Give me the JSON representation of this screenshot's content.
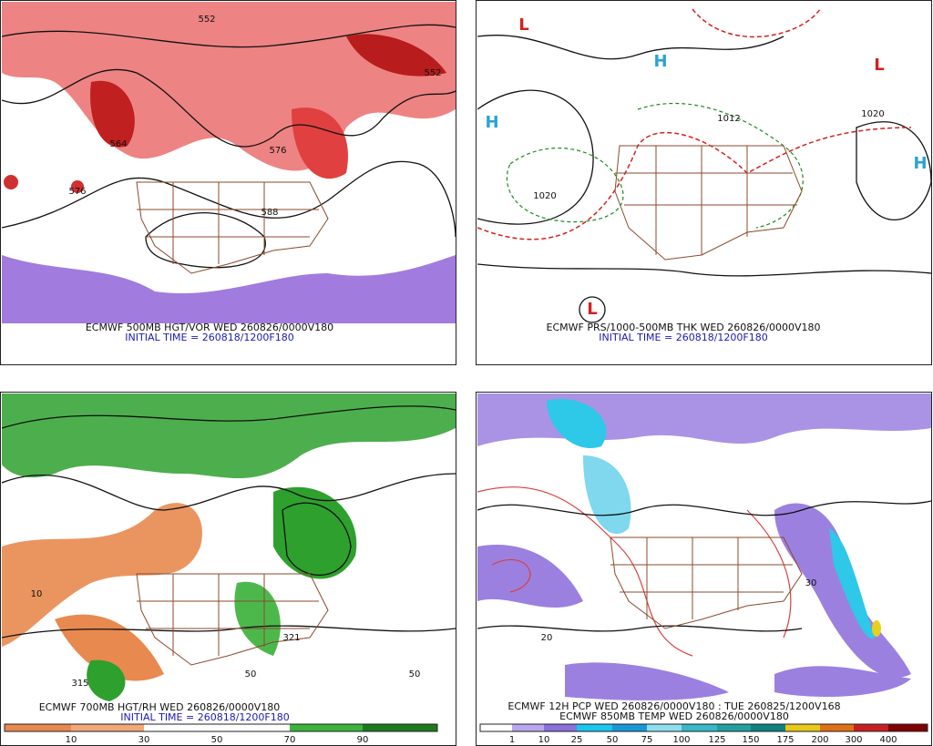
{
  "panels": [
    {
      "caption": "ECMWF 500MB HGT/VOR WED 260826/0000V180",
      "init": "INITIAL TIME = 260818/1200F180",
      "labels": [
        "552",
        "552",
        "564",
        "576",
        "576",
        "588"
      ]
    },
    {
      "caption": "ECMWF PRS/1000-500MB THK WED 260826/0000V180",
      "init": "INITIAL TIME = 260818/1200F180",
      "labels": [
        "H",
        "H",
        "H",
        "L",
        "L",
        "L",
        "1020",
        "1012",
        "1020"
      ]
    },
    {
      "caption": "ECMWF 700MB HGT/RH WED 260826/0000V180",
      "init": "INITIAL TIME = 260818/1200F180",
      "labels": [
        "10",
        "50",
        "50",
        "315",
        "321"
      ],
      "colorbar": [
        10,
        30,
        50,
        70,
        90
      ]
    },
    {
      "caption": "ECMWF 12H PCP WED 260826/0000V180 : TUE 260825/1200V168",
      "caption2": "ECMWF 850MB TEMP WED 260826/0000V180",
      "labels": [
        "20",
        "30"
      ],
      "colorbar": [
        1,
        10,
        25,
        50,
        75,
        100,
        125,
        150,
        175,
        200,
        300,
        400
      ]
    }
  ]
}
